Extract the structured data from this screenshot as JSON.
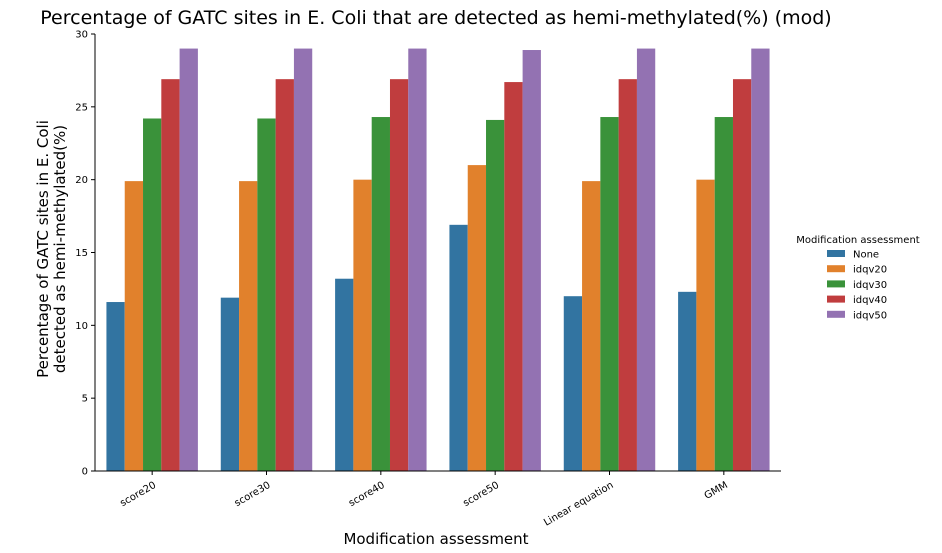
{
  "chart_data": {
    "type": "bar",
    "title": "Percentage of GATC sites in E. Coli that are detected as hemi-methylated(%) (mod)",
    "xlabel": "Modification assessment",
    "ylabel_lines": [
      "Percentage of GATC sites in E. Coli",
      "detected as hemi-methylated(%)"
    ],
    "ylim": [
      0,
      30
    ],
    "yticks": [
      0,
      5,
      10,
      15,
      20,
      25,
      30
    ],
    "categories": [
      "score20",
      "score30",
      "score40",
      "score50",
      "Linear equation",
      "GMM"
    ],
    "legend_title": "Modification assessment",
    "legend_position": "right",
    "grid": false,
    "series": [
      {
        "name": "None",
        "color": "#3274a1",
        "values": [
          11.6,
          11.9,
          13.2,
          16.9,
          12.0,
          12.3
        ]
      },
      {
        "name": "idqv20",
        "color": "#e1812c",
        "values": [
          19.9,
          19.9,
          20.0,
          21.0,
          19.9,
          20.0
        ]
      },
      {
        "name": "idqv30",
        "color": "#3a923a",
        "values": [
          24.2,
          24.2,
          24.3,
          24.1,
          24.3,
          24.3
        ]
      },
      {
        "name": "idqv40",
        "color": "#c03d3e",
        "values": [
          26.9,
          26.9,
          26.9,
          26.7,
          26.9,
          26.9
        ]
      },
      {
        "name": "idqv50",
        "color": "#9372b2",
        "values": [
          29.0,
          29.0,
          29.0,
          28.9,
          29.0,
          29.0
        ]
      }
    ]
  }
}
